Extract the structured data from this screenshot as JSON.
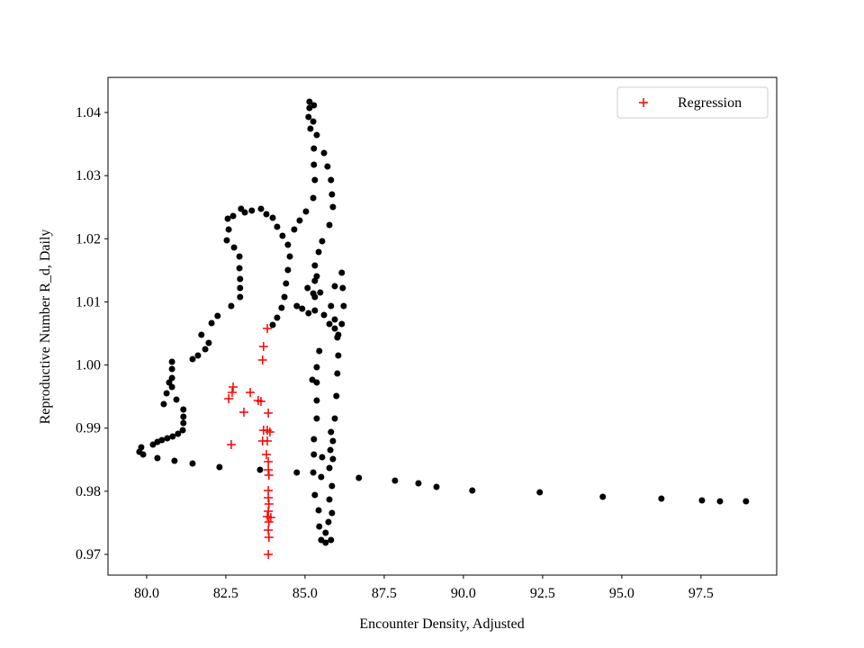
{
  "chart_data": {
    "type": "scatter",
    "xlabel": "Encounter Density, Adjusted",
    "ylabel": "Reproductive Number R_d, Daily",
    "xlim": [
      78.78,
      99.89
    ],
    "ylim": [
      0.96672,
      1.04556
    ],
    "xticks": [
      {
        "value": 80,
        "label": "80.0"
      },
      82.5,
      {
        "value": 85,
        "label": "85.0"
      },
      87.5,
      {
        "value": 90,
        "label": "90.0"
      },
      92.5,
      {
        "value": 95,
        "label": "95.0"
      },
      97.5
    ],
    "yticks": [
      0.97,
      0.98,
      0.99,
      {
        "value": 1,
        "label": "1.00"
      },
      1.01,
      1.02,
      1.03,
      1.04
    ],
    "legend": "upper right",
    "series": [
      {
        "color": "#000000",
        "marker": "dot",
        "x": [
          98.92,
          98.1,
          97.53,
          96.25,
          94.4,
          92.41,
          90.28,
          89.15,
          88.58,
          87.84,
          86.7,
          84.74,
          83.58,
          82.3,
          81.45,
          80.88,
          80.34,
          79.77,
          79.89,
          79.83,
          80.2,
          80.34,
          80.48,
          80.65,
          80.82,
          80.99,
          81.14,
          81.16,
          81.16,
          81.16,
          80.94,
          80.8,
          80.8,
          80.8,
          80.8,
          80.71,
          80.63,
          80.54,
          81.45,
          81.62,
          81.85,
          81.96,
          81.73,
          82.05,
          82.24,
          82.67,
          82.95,
          82.95,
          82.95,
          82.93,
          82.93,
          82.76,
          82.53,
          82.59,
          82.56,
          82.73,
          82.98,
          83.1,
          83.32,
          83.61,
          83.78,
          83.98,
          84.12,
          84.29,
          84.46,
          84.52,
          84.46,
          84.4,
          84.35,
          84.26,
          84.12,
          83.98,
          84.74,
          84.91,
          85.11,
          85.31,
          85.31,
          85.31,
          85.31,
          85.43,
          85.54,
          85.77,
          85.88,
          85.85,
          85.82,
          85.71,
          85.6,
          85.37,
          85.26,
          85.14,
          85.14,
          85.28,
          85.11,
          85.17,
          85.28,
          85.28,
          85.31,
          85.26,
          85.03,
          84.83,
          84.66,
          85.08,
          85.26,
          85.37,
          85.48,
          85.6,
          85.77,
          85.94,
          86.05,
          86.16,
          86.22,
          86.19,
          86.16,
          85.94,
          85.82,
          85.94,
          86.02,
          86.05,
          86.02,
          85.99,
          85.94,
          85.88,
          85.88,
          85.85,
          85.85,
          85.82,
          85.65,
          85.51,
          85.45,
          85.43,
          85.31,
          85.26,
          85.28,
          85.28,
          85.37,
          85.37,
          85.37,
          85.23,
          85.37,
          85.45,
          85.54,
          85.77,
          85.8,
          85.82,
          85.51,
          85.65,
          85.74,
          85.77
        ],
        "values": [
          0.97841,
          0.97841,
          0.97855,
          0.97884,
          0.97912,
          0.97983,
          0.98012,
          0.98069,
          0.98126,
          0.98169,
          0.98212,
          0.98297,
          0.9834,
          0.98383,
          0.9844,
          0.98482,
          0.98525,
          0.98625,
          0.98582,
          0.98696,
          0.98739,
          0.98782,
          0.9881,
          0.98839,
          0.98867,
          0.9891,
          0.98967,
          0.99081,
          0.99181,
          0.99295,
          0.99452,
          0.99652,
          0.99794,
          0.99937,
          1.00051,
          0.99723,
          0.99552,
          0.99381,
          1.00093,
          1.00151,
          1.0025,
          1.0035,
          1.00478,
          1.00664,
          1.00778,
          1.00935,
          1.01077,
          1.0122,
          1.01362,
          1.01533,
          1.01719,
          1.01861,
          1.01975,
          1.02147,
          1.02318,
          1.0236,
          1.02474,
          1.02417,
          1.02446,
          1.02474,
          1.02389,
          1.02332,
          1.02189,
          1.02047,
          1.01904,
          1.01719,
          1.01505,
          1.01291,
          1.01077,
          1.00906,
          1.00749,
          1.00635,
          1.00935,
          1.00892,
          1.00821,
          1.00864,
          1.01077,
          1.01333,
          1.01576,
          1.0179,
          1.01961,
          1.02218,
          1.02503,
          1.02703,
          1.02931,
          1.03145,
          1.03358,
          1.03644,
          1.03857,
          1.04071,
          1.04171,
          1.04114,
          1.03929,
          1.03743,
          1.0343,
          1.03173,
          1.02931,
          1.02646,
          1.02432,
          1.02289,
          1.02147,
          1.0122,
          1.01134,
          1.01405,
          1.01148,
          1.00792,
          1.0065,
          1.00578,
          1.00479,
          1.0065,
          1.00935,
          1.0122,
          1.01462,
          1.01248,
          1.00935,
          1.00721,
          1.00436,
          1.00151,
          0.99865,
          0.99509,
          0.99153,
          0.98796,
          0.98511,
          0.98083,
          0.97656,
          0.97228,
          0.97185,
          0.97228,
          0.97442,
          0.97698,
          0.97941,
          0.98297,
          0.98582,
          0.98825,
          0.99153,
          0.99438,
          0.99723,
          0.99766,
          0.99965,
          1.00222,
          0.9854,
          0.98369,
          0.98653,
          0.98938,
          0.98226,
          0.97342,
          0.97513,
          0.97869
        ]
      },
      {
        "name": "Regression",
        "color": "#ff0000",
        "marker": "plus",
        "x": [
          83.81,
          83.69,
          83.66,
          82.73,
          82.7,
          82.59,
          83.27,
          83.52,
          83.61,
          83.07,
          83.84,
          83.69,
          83.81,
          83.89,
          83.66,
          83.81,
          82.67,
          83.78,
          83.84,
          83.84,
          83.86,
          83.84,
          83.84,
          83.86,
          83.84,
          83.81,
          83.92,
          83.86,
          83.84,
          83.86,
          83.84
        ],
        "values": [
          1.00578,
          1.00293,
          1.00079,
          0.99652,
          0.99566,
          0.99466,
          0.99566,
          0.99438,
          0.99424,
          0.99253,
          0.99238,
          0.98967,
          0.98967,
          0.98939,
          0.98796,
          0.98796,
          0.98739,
          0.98582,
          0.98468,
          0.9834,
          0.98254,
          0.98012,
          0.97898,
          0.97798,
          0.97684,
          0.97599,
          0.97584,
          0.97513,
          0.97385,
          0.97271,
          0.97
        ]
      }
    ]
  }
}
